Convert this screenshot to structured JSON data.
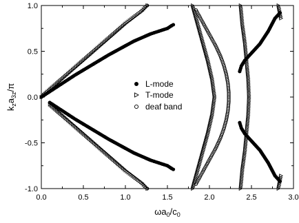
{
  "chart_data": {
    "type": "scatter",
    "title": "",
    "xlabel": {
      "main": "ωa",
      "sub1": "0",
      "mid": "/c",
      "sub2": "0"
    },
    "ylabel": {
      "main": "k",
      "sub1": "z",
      "mid": "a",
      "sub2": "3z",
      "tail": "/π"
    },
    "xlim": [
      0.0,
      3.0
    ],
    "ylim": [
      -1.0,
      1.0
    ],
    "xticks": [
      "0.0",
      "0.5",
      "1.0",
      "1.5",
      "2.0",
      "2.5",
      "3.0"
    ],
    "yticks": [
      "-1.0",
      "-0.5",
      "0.0",
      "0.5",
      "1.0"
    ],
    "grid": false,
    "legend_position": "center",
    "series": [
      {
        "name": "L-mode",
        "marker": "filled-circle",
        "color": "#000000",
        "points": [
          [
            0.0,
            0.0
          ],
          [
            0.1,
            0.06
          ],
          [
            0.2,
            0.12
          ],
          [
            0.3,
            0.18
          ],
          [
            0.4,
            0.24
          ],
          [
            0.5,
            0.295
          ],
          [
            0.6,
            0.35
          ],
          [
            0.7,
            0.405
          ],
          [
            0.8,
            0.46
          ],
          [
            0.9,
            0.51
          ],
          [
            1.0,
            0.56
          ],
          [
            1.1,
            0.61
          ],
          [
            1.2,
            0.65
          ],
          [
            1.3,
            0.69
          ],
          [
            1.4,
            0.72
          ],
          [
            1.5,
            0.75
          ],
          [
            1.55,
            0.78
          ],
          [
            1.57,
            0.79
          ],
          [
            0.1,
            -0.06
          ],
          [
            0.2,
            -0.12
          ],
          [
            0.3,
            -0.18
          ],
          [
            0.4,
            -0.24
          ],
          [
            0.5,
            -0.295
          ],
          [
            0.6,
            -0.35
          ],
          [
            0.7,
            -0.405
          ],
          [
            0.8,
            -0.46
          ],
          [
            0.9,
            -0.51
          ],
          [
            1.0,
            -0.56
          ],
          [
            1.1,
            -0.61
          ],
          [
            1.2,
            -0.65
          ],
          [
            1.3,
            -0.69
          ],
          [
            1.4,
            -0.72
          ],
          [
            1.5,
            -0.75
          ],
          [
            1.55,
            -0.78
          ],
          [
            1.57,
            -0.79
          ],
          [
            2.36,
            0.28
          ],
          [
            2.38,
            0.34
          ],
          [
            2.42,
            0.4
          ],
          [
            2.5,
            0.48
          ],
          [
            2.6,
            0.58
          ],
          [
            2.7,
            0.72
          ],
          [
            2.78,
            0.86
          ],
          [
            2.84,
            0.92
          ],
          [
            2.36,
            -0.28
          ],
          [
            2.38,
            -0.34
          ],
          [
            2.42,
            -0.4
          ],
          [
            2.5,
            -0.48
          ],
          [
            2.6,
            -0.58
          ],
          [
            2.7,
            -0.72
          ],
          [
            2.78,
            -0.86
          ],
          [
            2.84,
            -0.92
          ]
        ]
      },
      {
        "name": "T-mode",
        "marker": "open-triangle",
        "color": "#000000",
        "points": [
          [
            0.0,
            0.0
          ],
          [
            0.1,
            0.08
          ],
          [
            0.2,
            0.16
          ],
          [
            0.3,
            0.24
          ],
          [
            0.4,
            0.32
          ],
          [
            0.5,
            0.4
          ],
          [
            0.6,
            0.48
          ],
          [
            0.7,
            0.56
          ],
          [
            0.8,
            0.64
          ],
          [
            0.9,
            0.72
          ],
          [
            1.0,
            0.8
          ],
          [
            1.1,
            0.87
          ],
          [
            1.2,
            0.94
          ],
          [
            1.26,
            1.0
          ],
          [
            0.1,
            -0.08
          ],
          [
            0.2,
            -0.16
          ],
          [
            0.3,
            -0.24
          ],
          [
            0.4,
            -0.32
          ],
          [
            0.5,
            -0.4
          ],
          [
            0.6,
            -0.48
          ],
          [
            0.7,
            -0.56
          ],
          [
            0.8,
            -0.64
          ],
          [
            0.9,
            -0.72
          ],
          [
            1.0,
            -0.8
          ],
          [
            1.1,
            -0.87
          ],
          [
            1.2,
            -0.94
          ],
          [
            1.26,
            -1.0
          ],
          [
            1.8,
            1.0
          ],
          [
            1.86,
            0.8
          ],
          [
            1.92,
            0.6
          ],
          [
            1.98,
            0.4
          ],
          [
            2.03,
            0.2
          ],
          [
            2.06,
            0.0
          ],
          [
            2.03,
            -0.2
          ],
          [
            1.98,
            -0.4
          ],
          [
            1.92,
            -0.6
          ],
          [
            1.86,
            -0.8
          ],
          [
            1.8,
            -1.0
          ],
          [
            2.37,
            1.0
          ],
          [
            2.39,
            0.8
          ],
          [
            2.42,
            0.6
          ],
          [
            2.44,
            0.4
          ],
          [
            2.46,
            0.2
          ],
          [
            2.47,
            0.0
          ],
          [
            2.46,
            -0.2
          ],
          [
            2.44,
            -0.4
          ],
          [
            2.42,
            -0.6
          ],
          [
            2.39,
            -0.8
          ],
          [
            2.37,
            -1.0
          ],
          [
            2.82,
            1.0
          ],
          [
            2.85,
            0.86
          ],
          [
            2.85,
            -0.86
          ],
          [
            2.82,
            -1.0
          ]
        ]
      },
      {
        "name": "deaf band",
        "marker": "open-circle",
        "color": "#000000",
        "points": [
          [
            1.26,
            1.0
          ],
          [
            1.26,
            -1.0
          ],
          [
            1.84,
            0.95
          ],
          [
            1.9,
            0.85
          ],
          [
            1.96,
            0.75
          ],
          [
            2.02,
            0.65
          ],
          [
            2.08,
            0.55
          ],
          [
            2.13,
            0.45
          ],
          [
            2.17,
            0.35
          ],
          [
            2.2,
            0.25
          ],
          [
            2.22,
            0.15
          ],
          [
            2.23,
            0.05
          ],
          [
            2.23,
            -0.05
          ],
          [
            2.22,
            -0.15
          ],
          [
            2.2,
            -0.25
          ],
          [
            2.17,
            -0.35
          ],
          [
            2.13,
            -0.45
          ],
          [
            2.08,
            -0.55
          ],
          [
            2.02,
            -0.65
          ],
          [
            1.96,
            -0.75
          ],
          [
            1.9,
            -0.85
          ],
          [
            1.84,
            -0.95
          ]
        ]
      }
    ]
  }
}
